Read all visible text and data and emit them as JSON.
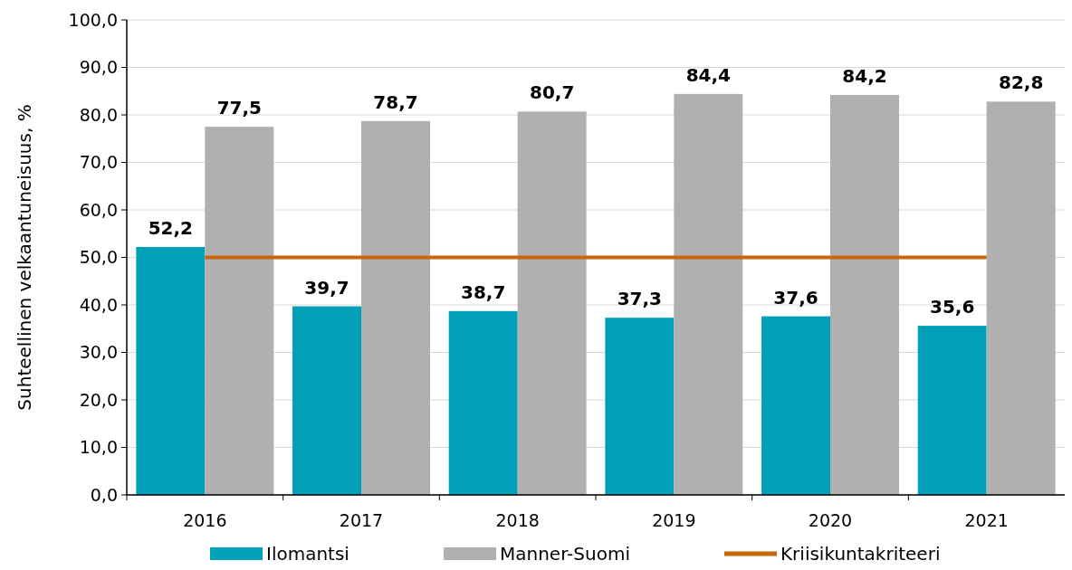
{
  "chart_data": {
    "type": "bar",
    "ylabel": "Suhteellinen velkaantuneisuus, %",
    "categories": [
      "2016",
      "2017",
      "2018",
      "2019",
      "2020",
      "2021"
    ],
    "series": [
      {
        "name": "Ilomantsi",
        "color": "#00a0b8",
        "values": [
          52.2,
          39.7,
          38.7,
          37.3,
          37.6,
          35.6
        ],
        "value_labels": [
          "52,2",
          "39,7",
          "38,7",
          "37,3",
          "37,6",
          "35,6"
        ]
      },
      {
        "name": "Manner-Suomi",
        "color": "#b0b0b0",
        "values": [
          77.5,
          78.7,
          80.7,
          84.4,
          84.2,
          82.8
        ],
        "value_labels": [
          "77,5",
          "78,7",
          "80,7",
          "84,4",
          "84,2",
          "82,8"
        ]
      },
      {
        "name": "Kriisikuntakriteeri",
        "type": "line",
        "color": "#c8660a",
        "values": [
          50,
          50,
          50,
          50,
          50,
          50
        ]
      }
    ],
    "ylim": [
      0,
      100
    ],
    "yticks": [
      {
        "value": 0,
        "label": "0,0"
      },
      {
        "value": 10,
        "label": "10,0"
      },
      {
        "value": 20,
        "label": "20,0"
      },
      {
        "value": 30,
        "label": "30,0"
      },
      {
        "value": 40,
        "label": "40,0"
      },
      {
        "value": 50,
        "label": "50,0"
      },
      {
        "value": 60,
        "label": "60,0"
      },
      {
        "value": 70,
        "label": "70,0"
      },
      {
        "value": 80,
        "label": "80,0"
      },
      {
        "value": 90,
        "label": "90,0"
      },
      {
        "value": 100,
        "label": "100,0"
      }
    ],
    "grid": "y",
    "legend": "bottom",
    "marker": "none",
    "line_style": "solid"
  }
}
